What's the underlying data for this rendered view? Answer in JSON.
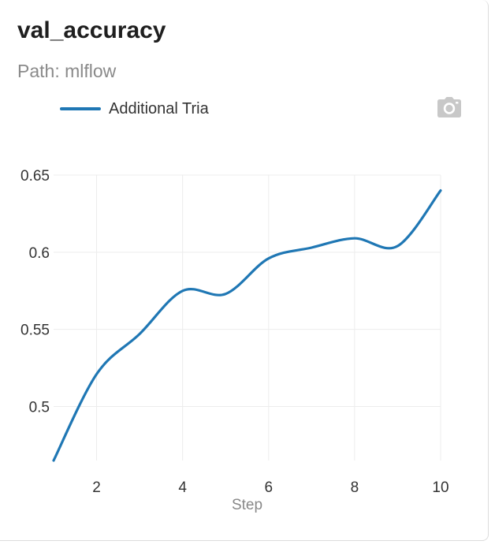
{
  "panel": {
    "title": "val_accuracy",
    "subtitle": "Path: mlflow",
    "camera_icon": "camera-icon"
  },
  "chart_data": {
    "type": "line",
    "xlabel": "Step",
    "ylabel": "",
    "xlim": [
      1,
      10
    ],
    "ylim": [
      0.465,
      0.65
    ],
    "xticks": [
      2,
      4,
      6,
      8,
      10
    ],
    "xtick_labels": [
      "2",
      "4",
      "6",
      "8",
      "10"
    ],
    "yticks": [
      0.5,
      0.55,
      0.6,
      0.65
    ],
    "ytick_labels": [
      "0.5",
      "0.55",
      "0.6",
      "0.65"
    ],
    "grid": true,
    "legend_position": "top-left",
    "series": [
      {
        "name": "Additional Tria",
        "color": "#1f77b4",
        "x": [
          1,
          2,
          3,
          4,
          5,
          6,
          7,
          8,
          9,
          10
        ],
        "y": [
          0.465,
          0.521,
          0.547,
          0.575,
          0.573,
          0.596,
          0.603,
          0.609,
          0.604,
          0.64
        ]
      }
    ]
  }
}
